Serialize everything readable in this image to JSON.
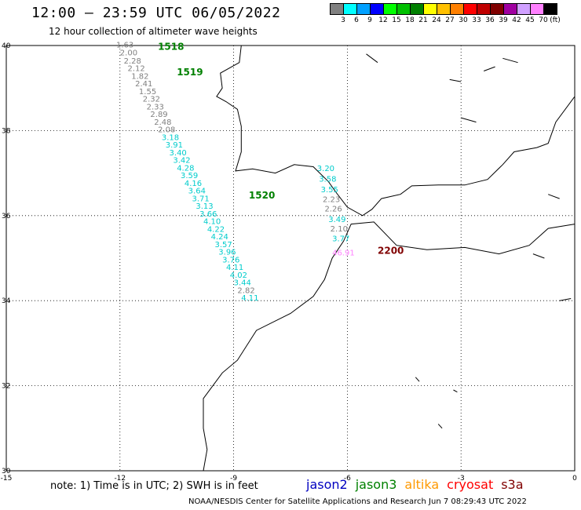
{
  "title": "12:00 – 23:59 UTC 06/05/2022",
  "subtitle": "12 hour collection of altimeter wave heights",
  "legend": {
    "unit": "(ft)",
    "bins": [
      {
        "label": "3",
        "color": "#808080"
      },
      {
        "label": "6",
        "color": "#00ffff"
      },
      {
        "label": "9",
        "color": "#00a0ff"
      },
      {
        "label": "12",
        "color": "#0000ff"
      },
      {
        "label": "15",
        "color": "#00ff00"
      },
      {
        "label": "18",
        "color": "#00c000"
      },
      {
        "label": "21",
        "color": "#008000"
      },
      {
        "label": "24",
        "color": "#ffff00"
      },
      {
        "label": "27",
        "color": "#ffc000"
      },
      {
        "label": "30",
        "color": "#ff8000"
      },
      {
        "label": "33",
        "color": "#ff0000"
      },
      {
        "label": "36",
        "color": "#c00000"
      },
      {
        "label": "39",
        "color": "#800000"
      },
      {
        "label": "42",
        "color": "#a000a0"
      },
      {
        "label": "45",
        "color": "#d0a0ff"
      },
      {
        "label": "70",
        "color": "#ff80ff"
      },
      {
        "label": "",
        "color": "#000000"
      }
    ]
  },
  "map": {
    "lon_range": [
      -15,
      0
    ],
    "lat_range": [
      30,
      40
    ],
    "lon_ticks": [
      "-15",
      "-12",
      "-9",
      "-6",
      "-3",
      "0"
    ],
    "lat_ticks": [
      "30",
      "32",
      "34",
      "36",
      "38",
      "40"
    ],
    "pass_labels": [
      {
        "text": "1518",
        "lon": -11.0,
        "lat": 39.9,
        "color": "#008000"
      },
      {
        "text": "1519",
        "lon": -10.5,
        "lat": 39.3,
        "color": "#008000"
      },
      {
        "text": "1520",
        "lon": -8.6,
        "lat": 36.4,
        "color": "#008000"
      },
      {
        "text": "2200",
        "lon": -5.2,
        "lat": 35.1,
        "color": "#800000"
      }
    ],
    "track_a": [
      {
        "v": "1.63",
        "lon": -12.1,
        "lat": 39.95,
        "color": "#808080"
      },
      {
        "v": "2.00",
        "lon": -12.0,
        "lat": 39.77,
        "color": "#808080"
      },
      {
        "v": "2.28",
        "lon": -11.9,
        "lat": 39.58,
        "color": "#808080"
      },
      {
        "v": "2.12",
        "lon": -11.8,
        "lat": 39.4,
        "color": "#808080"
      },
      {
        "v": "1.82",
        "lon": -11.7,
        "lat": 39.22,
        "color": "#808080"
      },
      {
        "v": "2.41",
        "lon": -11.6,
        "lat": 39.04,
        "color": "#808080"
      },
      {
        "v": "1.55",
        "lon": -11.5,
        "lat": 38.86,
        "color": "#808080"
      },
      {
        "v": "2.32",
        "lon": -11.4,
        "lat": 38.68,
        "color": "#808080"
      },
      {
        "v": "2.33",
        "lon": -11.3,
        "lat": 38.5,
        "color": "#808080"
      },
      {
        "v": "2.89",
        "lon": -11.2,
        "lat": 38.32,
        "color": "#808080"
      },
      {
        "v": "2.48",
        "lon": -11.1,
        "lat": 38.14,
        "color": "#808080"
      },
      {
        "v": "2.08",
        "lon": -11.0,
        "lat": 37.96,
        "color": "#808080"
      },
      {
        "v": "3.18",
        "lon": -10.9,
        "lat": 37.78,
        "color": "#00cccc"
      },
      {
        "v": "3.91",
        "lon": -10.8,
        "lat": 37.6,
        "color": "#00cccc"
      },
      {
        "v": "3.40",
        "lon": -10.7,
        "lat": 37.42,
        "color": "#00cccc"
      },
      {
        "v": "3.42",
        "lon": -10.6,
        "lat": 37.24,
        "color": "#00cccc"
      },
      {
        "v": "4.28",
        "lon": -10.5,
        "lat": 37.06,
        "color": "#00cccc"
      },
      {
        "v": "3.59",
        "lon": -10.4,
        "lat": 36.88,
        "color": "#00cccc"
      },
      {
        "v": "4.16",
        "lon": -10.3,
        "lat": 36.7,
        "color": "#00cccc"
      },
      {
        "v": "3.64",
        "lon": -10.2,
        "lat": 36.52,
        "color": "#00cccc"
      },
      {
        "v": "3.71",
        "lon": -10.1,
        "lat": 36.34,
        "color": "#00cccc"
      },
      {
        "v": "3.13",
        "lon": -10.0,
        "lat": 36.16,
        "color": "#00cccc"
      },
      {
        "v": "3.66",
        "lon": -9.9,
        "lat": 35.98,
        "color": "#00cccc"
      },
      {
        "v": "4.10",
        "lon": -9.8,
        "lat": 35.8,
        "color": "#00cccc"
      },
      {
        "v": "4.22",
        "lon": -9.7,
        "lat": 35.62,
        "color": "#00cccc"
      },
      {
        "v": "4.24",
        "lon": -9.6,
        "lat": 35.44,
        "color": "#00cccc"
      },
      {
        "v": "3.57",
        "lon": -9.5,
        "lat": 35.26,
        "color": "#00cccc"
      },
      {
        "v": "3.96",
        "lon": -9.4,
        "lat": 35.08,
        "color": "#00cccc"
      },
      {
        "v": "3.76",
        "lon": -9.3,
        "lat": 34.9,
        "color": "#00cccc"
      },
      {
        "v": "4.11",
        "lon": -9.2,
        "lat": 34.72,
        "color": "#00cccc"
      },
      {
        "v": "4.02",
        "lon": -9.1,
        "lat": 34.54,
        "color": "#00cccc"
      },
      {
        "v": "3.44",
        "lon": -9.0,
        "lat": 34.36,
        "color": "#00cccc"
      },
      {
        "v": "2.82",
        "lon": -8.9,
        "lat": 34.18,
        "color": "#808080"
      },
      {
        "v": "4.11",
        "lon": -8.8,
        "lat": 34.0,
        "color": "#00cccc"
      }
    ],
    "track_b": [
      {
        "v": "3.20",
        "lon": -6.8,
        "lat": 37.05,
        "color": "#00cccc"
      },
      {
        "v": "3.58",
        "lon": -6.75,
        "lat": 36.8,
        "color": "#00cccc"
      },
      {
        "v": "3.55",
        "lon": -6.7,
        "lat": 36.55,
        "color": "#00cccc"
      },
      {
        "v": "2.23",
        "lon": -6.65,
        "lat": 36.32,
        "color": "#808080"
      },
      {
        "v": "2.26",
        "lon": -6.6,
        "lat": 36.1,
        "color": "#808080"
      },
      {
        "v": "3.49",
        "lon": -6.5,
        "lat": 35.85,
        "color": "#00cccc"
      },
      {
        "v": "2.10",
        "lon": -6.45,
        "lat": 35.63,
        "color": "#808080"
      },
      {
        "v": "3.77",
        "lon": -6.4,
        "lat": 35.4,
        "color": "#00cccc"
      },
      {
        "v": "46.91",
        "lon": -6.4,
        "lat": 35.06,
        "color": "#ff80ff"
      }
    ]
  },
  "note": "note:  1) Time is in UTC;  2) SWH is in feet",
  "satellites": [
    {
      "name": "jason2",
      "color": "#0000c0"
    },
    {
      "name": "jason3",
      "color": "#008000"
    },
    {
      "name": "altika",
      "color": "#ff9900"
    },
    {
      "name": "cryosat",
      "color": "#ff0000"
    },
    {
      "name": "s3a",
      "color": "#800000"
    }
  ],
  "credit": "NOAA/NESDIS Center for Satellite Applications and Research    Jun  7 08:29:43 UTC 2022"
}
